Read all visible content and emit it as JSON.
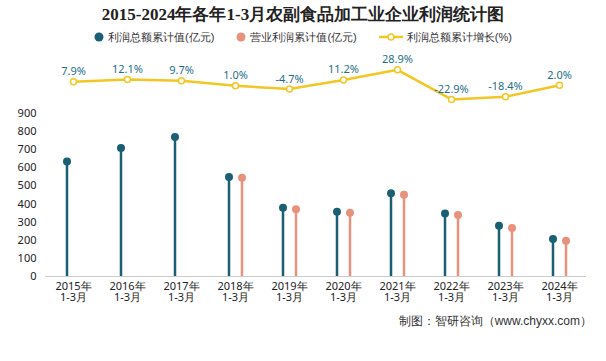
{
  "chart_data": {
    "type": "bar",
    "title": "2015-2024年各年1-3月农副食品加工业企业利润统计图",
    "categories": [
      "2015年\n1-3月",
      "2016年\n1-3月",
      "2017年\n1-3月",
      "2018年\n1-3月",
      "2019年\n1-3月",
      "2020年\n1-3月",
      "2021年\n1-3月",
      "2022年\n1-3月",
      "2023年\n1-3月",
      "2024年\n1-3月"
    ],
    "series": [
      {
        "name": "利润总额累计值(亿元)",
        "type": "bar",
        "marker": "circle",
        "color": "#1b5f73",
        "values": [
          635,
          710,
          770,
          550,
          380,
          358,
          460,
          348,
          280,
          207
        ]
      },
      {
        "name": "营业利润累计值(亿元)",
        "type": "bar",
        "marker": "circle",
        "color": "#e8917c",
        "values": [
          null,
          null,
          null,
          545,
          372,
          352,
          452,
          340,
          268,
          197
        ]
      },
      {
        "name": "利润总额累计增长(%)",
        "type": "line",
        "marker": "circle",
        "axis": "y2",
        "color": "#f3c623",
        "values": [
          7.9,
          12.1,
          9.7,
          1.0,
          -4.7,
          11.2,
          28.9,
          -22.9,
          -18.4,
          2.0
        ],
        "value_labels": [
          "7.9%",
          "12.1%",
          "9.7%",
          "1.0%",
          "-4.7%",
          "11.2%",
          "28.9%",
          "-22.9%",
          "-18.4%",
          "2.0%"
        ]
      }
    ],
    "ylim": [
      0,
      900
    ],
    "yticks": [
      0,
      100,
      200,
      300,
      400,
      500,
      600,
      700,
      800,
      900
    ],
    "y2lim": [
      -30,
      40
    ],
    "grid": false,
    "legend": "top",
    "source": "制图：智研咨询（www.chyxx.com）"
  }
}
